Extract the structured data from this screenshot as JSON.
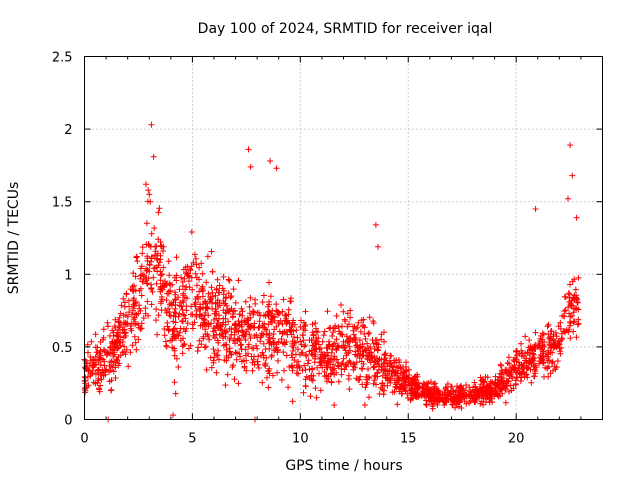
{
  "chart_data": {
    "type": "scatter",
    "title": "Day 100 of 2024, SRMTID for receiver iqal",
    "xlabel": "GPS time / hours",
    "ylabel": "SRMTID / TECUs",
    "xlim": [
      0,
      24
    ],
    "ylim": [
      0,
      2.5
    ],
    "xticks": [
      0,
      5,
      10,
      15,
      20
    ],
    "xtick_labels": [
      "0",
      "5",
      "10",
      "15",
      "20"
    ],
    "yticks": [
      0,
      0.5,
      1,
      1.5,
      2,
      2.5
    ],
    "ytick_labels": [
      "0",
      "0.5",
      "1",
      "1.5",
      "2",
      "2.5"
    ],
    "grid": true,
    "marker": "+",
    "color": "#ff0000",
    "trend": {
      "x": [
        0,
        1,
        1.5,
        2,
        2.5,
        3,
        3.5,
        4,
        5,
        6,
        7,
        8,
        9,
        10,
        11,
        12,
        13,
        14,
        15,
        16,
        17,
        18,
        19,
        20,
        21,
        22,
        22.5,
        23
      ],
      "y": [
        0.35,
        0.4,
        0.5,
        0.65,
        0.8,
        1.1,
        1.0,
        0.7,
        0.85,
        0.7,
        0.6,
        0.55,
        0.6,
        0.5,
        0.4,
        0.5,
        0.45,
        0.35,
        0.25,
        0.17,
        0.15,
        0.17,
        0.22,
        0.35,
        0.45,
        0.5,
        0.8,
        0.8
      ]
    },
    "spread": {
      "x": [
        0,
        2,
        3,
        4,
        5,
        8,
        10,
        13,
        15,
        17,
        19,
        20,
        22,
        23
      ],
      "y": [
        0.12,
        0.2,
        0.3,
        0.3,
        0.28,
        0.25,
        0.22,
        0.2,
        0.08,
        0.05,
        0.08,
        0.12,
        0.15,
        0.2
      ]
    },
    "points": {
      "x": [
        3.1,
        3.2,
        7.6,
        7.7,
        8.6,
        8.9,
        22.5,
        22.6,
        20.9,
        22.4,
        22.8,
        13.5,
        13.6,
        1.1,
        4.1,
        7.9,
        2.85,
        2.95,
        3.0,
        3.05
      ],
      "y": [
        2.03,
        1.81,
        1.86,
        1.74,
        1.78,
        1.73,
        1.89,
        1.68,
        1.45,
        1.52,
        1.39,
        1.34,
        1.19,
        0.0,
        0.03,
        0.0,
        1.62,
        1.58,
        1.55,
        1.5
      ]
    },
    "n_random_points": 2200
  }
}
